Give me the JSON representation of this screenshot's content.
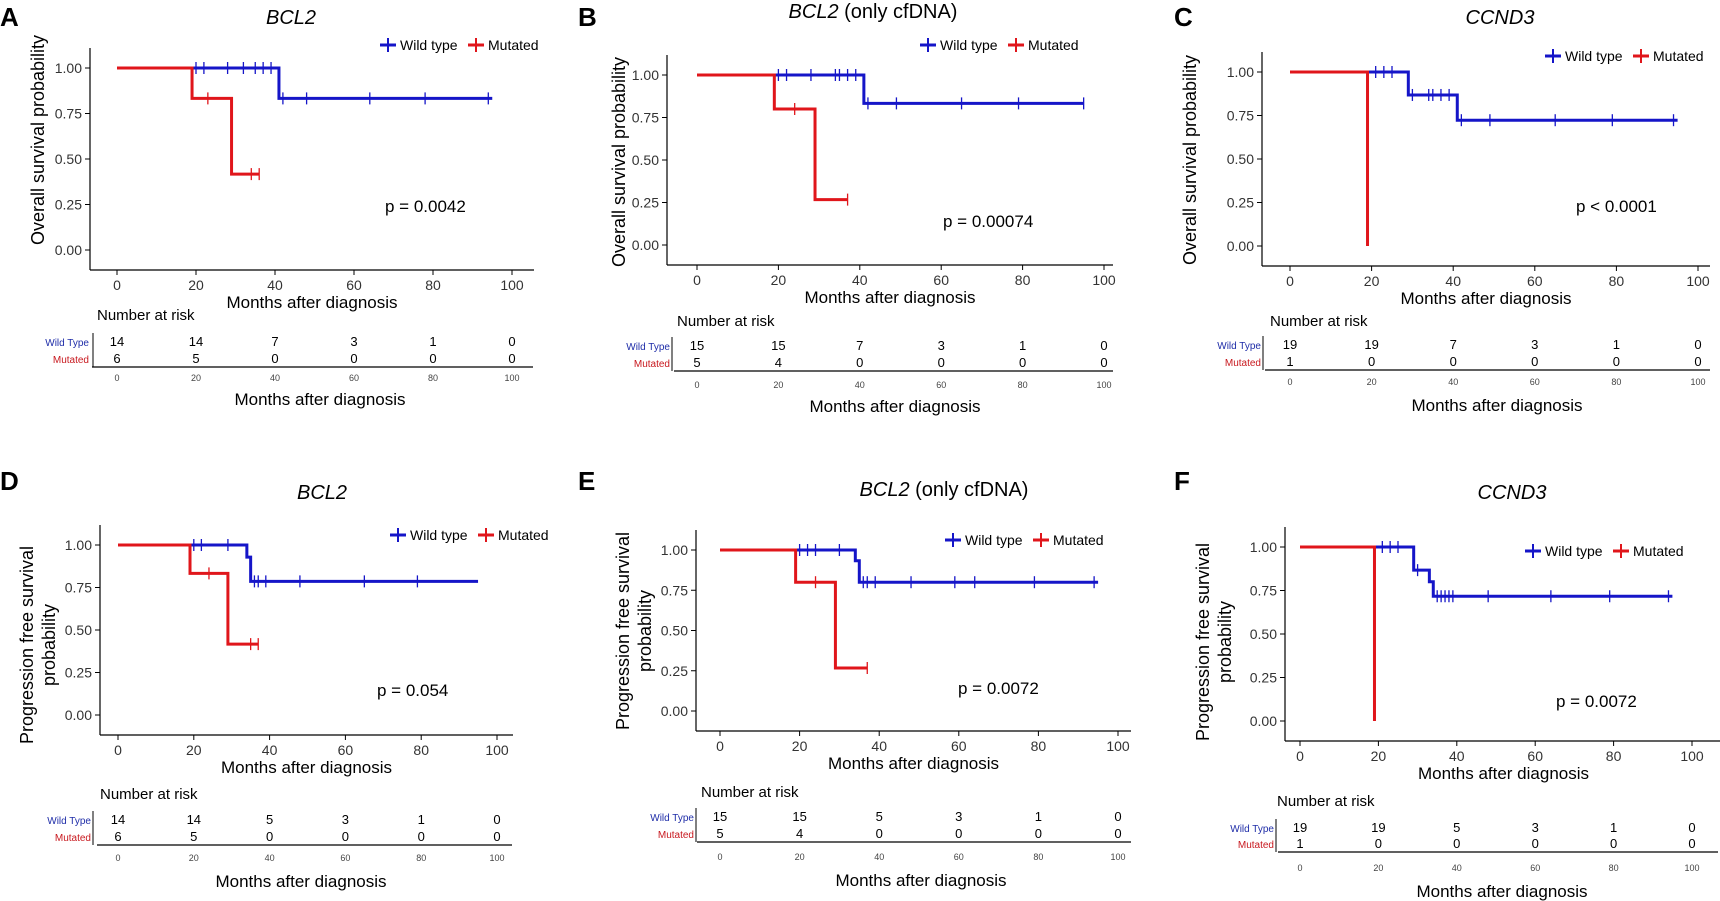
{
  "chart_data": [
    {
      "type": "line",
      "chart_kind": "kaplan-meier",
      "panel_label": "A",
      "title": "BCL2",
      "title_suffix": "",
      "ylabel_lines": [
        "Overall survival probability"
      ],
      "xlabel": "Months after diagnosis",
      "xlim": [
        0,
        100
      ],
      "ylim": [
        0,
        1
      ],
      "x_ticks": [
        0,
        20,
        40,
        60,
        80,
        100
      ],
      "y_ticks": [
        "0.00",
        "0.25",
        "0.50",
        "0.75",
        "1.00"
      ],
      "legend": [
        "Wild type",
        "Mutated"
      ],
      "p_value": "p = 0.0042",
      "series": [
        {
          "name": "Wild type",
          "color": "#1515c8",
          "steps": [
            [
              0,
              1.0
            ],
            [
              41,
              0.833
            ],
            [
              95,
              0.833
            ]
          ],
          "censor": [
            [
              20,
              1.0
            ],
            [
              22,
              1.0
            ],
            [
              28,
              1.0
            ],
            [
              32,
              1.0
            ],
            [
              35,
              1.0
            ],
            [
              37,
              1.0
            ],
            [
              39,
              1.0
            ],
            [
              42,
              0.833
            ],
            [
              48,
              0.833
            ],
            [
              64,
              0.833
            ],
            [
              78,
              0.833
            ],
            [
              94,
              0.833
            ]
          ]
        },
        {
          "name": "Mutated",
          "color": "#e0161b",
          "steps": [
            [
              0,
              1.0
            ],
            [
              19,
              0.833
            ],
            [
              29,
              0.417
            ],
            [
              36,
              0.417
            ]
          ],
          "censor": [
            [
              23,
              0.833
            ],
            [
              34,
              0.417
            ],
            [
              36,
              0.417
            ]
          ]
        }
      ],
      "risk_table": {
        "title": "Number at risk",
        "row_labels": [
          "Wild Type",
          "Mutated"
        ],
        "x_ticks": [
          0,
          20,
          40,
          60,
          80,
          100
        ],
        "rows": [
          [
            "14",
            "14",
            "7",
            "3",
            "1",
            "0"
          ],
          [
            "6",
            "5",
            "0",
            "0",
            "0",
            "0"
          ]
        ],
        "xlabel": "Months after diagnosis"
      }
    },
    {
      "type": "line",
      "chart_kind": "kaplan-meier",
      "panel_label": "B",
      "title": "BCL2",
      "title_suffix": " (only cfDNA)",
      "ylabel_lines": [
        "Overall survival probability"
      ],
      "xlabel": "Months after diagnosis",
      "xlim": [
        0,
        100
      ],
      "ylim": [
        0,
        1
      ],
      "x_ticks": [
        0,
        20,
        40,
        60,
        80,
        100
      ],
      "y_ticks": [
        "0.00",
        "0.25",
        "0.50",
        "0.75",
        "1.00"
      ],
      "legend": [
        "Wild type",
        "Mutated"
      ],
      "p_value": "p = 0.00074",
      "series": [
        {
          "name": "Wild type",
          "color": "#1515c8",
          "steps": [
            [
              0,
              1.0
            ],
            [
              41,
              0.833
            ],
            [
              95,
              0.833
            ]
          ],
          "censor": [
            [
              20,
              1.0
            ],
            [
              22,
              1.0
            ],
            [
              28,
              1.0
            ],
            [
              34,
              1.0
            ],
            [
              35,
              1.0
            ],
            [
              37,
              1.0
            ],
            [
              39,
              1.0
            ],
            [
              42,
              0.833
            ],
            [
              49,
              0.833
            ],
            [
              65,
              0.833
            ],
            [
              79,
              0.833
            ],
            [
              95,
              0.833
            ]
          ]
        },
        {
          "name": "Mutated",
          "color": "#e0161b",
          "steps": [
            [
              0,
              1.0
            ],
            [
              19,
              0.8
            ],
            [
              29,
              0.267
            ],
            [
              37,
              0.267
            ]
          ],
          "censor": [
            [
              24,
              0.8
            ],
            [
              37,
              0.267
            ]
          ]
        }
      ],
      "risk_table": {
        "title": "Number at risk",
        "row_labels": [
          "Wild Type",
          "Mutated"
        ],
        "x_ticks": [
          0,
          20,
          40,
          60,
          80,
          100
        ],
        "rows": [
          [
            "15",
            "15",
            "7",
            "3",
            "1",
            "0"
          ],
          [
            "5",
            "4",
            "0",
            "0",
            "0",
            "0"
          ]
        ],
        "xlabel": "Months after diagnosis"
      }
    },
    {
      "type": "line",
      "chart_kind": "kaplan-meier",
      "panel_label": "C",
      "title": "CCND3",
      "title_suffix": "",
      "ylabel_lines": [
        "Overall survival probability"
      ],
      "xlabel": "Months after diagnosis",
      "xlim": [
        0,
        100
      ],
      "ylim": [
        0,
        1
      ],
      "x_ticks": [
        0,
        20,
        40,
        60,
        80,
        100
      ],
      "y_ticks": [
        "0.00",
        "0.25",
        "0.50",
        "0.75",
        "1.00"
      ],
      "legend": [
        "Wild type",
        "Mutated"
      ],
      "p_value": "p < 0.0001",
      "series": [
        {
          "name": "Wild type",
          "color": "#1515c8",
          "steps": [
            [
              0,
              1.0
            ],
            [
              29,
              0.868
            ],
            [
              41,
              0.723
            ],
            [
              95,
              0.723
            ]
          ],
          "censor": [
            [
              21,
              1.0
            ],
            [
              23,
              1.0
            ],
            [
              25,
              1.0
            ],
            [
              30,
              0.868
            ],
            [
              34,
              0.868
            ],
            [
              35,
              0.868
            ],
            [
              37,
              0.868
            ],
            [
              39,
              0.868
            ],
            [
              42,
              0.723
            ],
            [
              49,
              0.723
            ],
            [
              65,
              0.723
            ],
            [
              79,
              0.723
            ],
            [
              94,
              0.723
            ]
          ]
        },
        {
          "name": "Mutated",
          "color": "#e0161b",
          "steps": [
            [
              0,
              1.0
            ],
            [
              19,
              0.0
            ]
          ],
          "censor": []
        }
      ],
      "risk_table": {
        "title": "Number at risk",
        "row_labels": [
          "Wild Type",
          "Mutated"
        ],
        "x_ticks": [
          0,
          20,
          40,
          60,
          80,
          100
        ],
        "rows": [
          [
            "19",
            "19",
            "7",
            "3",
            "1",
            "0"
          ],
          [
            "1",
            "0",
            "0",
            "0",
            "0",
            "0"
          ]
        ],
        "xlabel": "Months after diagnosis"
      }
    },
    {
      "type": "line",
      "chart_kind": "kaplan-meier",
      "panel_label": "D",
      "title": "BCL2",
      "title_suffix": "",
      "ylabel_lines": [
        "Progression free survival",
        "probability"
      ],
      "xlabel": "Months after diagnosis",
      "xlim": [
        0,
        100
      ],
      "ylim": [
        0,
        1
      ],
      "x_ticks": [
        0,
        20,
        40,
        60,
        80,
        100
      ],
      "y_ticks": [
        "0.00",
        "0.25",
        "0.50",
        "0.75",
        "1.00"
      ],
      "legend": [
        "Wild type",
        "Mutated"
      ],
      "p_value": "p = 0.054",
      "series": [
        {
          "name": "Wild type",
          "color": "#1515c8",
          "steps": [
            [
              0,
              1.0
            ],
            [
              34,
              0.929
            ],
            [
              35,
              0.786
            ],
            [
              95,
              0.786
            ]
          ],
          "censor": [
            [
              20,
              1.0
            ],
            [
              22,
              1.0
            ],
            [
              29,
              1.0
            ],
            [
              36,
              0.786
            ],
            [
              37,
              0.786
            ],
            [
              39,
              0.786
            ],
            [
              48,
              0.786
            ],
            [
              65,
              0.786
            ],
            [
              79,
              0.786
            ]
          ]
        },
        {
          "name": "Mutated",
          "color": "#e0161b",
          "steps": [
            [
              0,
              1.0
            ],
            [
              19,
              0.833
            ],
            [
              29,
              0.417
            ],
            [
              37,
              0.417
            ]
          ],
          "censor": [
            [
              24,
              0.833
            ],
            [
              35,
              0.417
            ],
            [
              37,
              0.417
            ]
          ]
        }
      ],
      "risk_table": {
        "title": "Number at risk",
        "row_labels": [
          "Wild Type",
          "Mutated"
        ],
        "x_ticks": [
          0,
          20,
          40,
          60,
          80,
          100
        ],
        "rows": [
          [
            "14",
            "14",
            "5",
            "3",
            "1",
            "0"
          ],
          [
            "6",
            "5",
            "0",
            "0",
            "0",
            "0"
          ]
        ],
        "xlabel": "Months after diagnosis"
      }
    },
    {
      "type": "line",
      "chart_kind": "kaplan-meier",
      "panel_label": "E",
      "title": "BCL2",
      "title_suffix": " (only cfDNA)",
      "ylabel_lines": [
        "Progression free survival",
        "probability"
      ],
      "xlabel": "Months after diagnosis",
      "xlim": [
        0,
        100
      ],
      "ylim": [
        0,
        1
      ],
      "x_ticks": [
        0,
        20,
        40,
        60,
        80,
        100
      ],
      "y_ticks": [
        "0.00",
        "0.25",
        "0.50",
        "0.75",
        "1.00"
      ],
      "legend": [
        "Wild type",
        "Mutated"
      ],
      "p_value": "p = 0.0072",
      "series": [
        {
          "name": "Wild type",
          "color": "#1515c8",
          "steps": [
            [
              0,
              1.0
            ],
            [
              34,
              0.933
            ],
            [
              35,
              0.8
            ],
            [
              95,
              0.8
            ]
          ],
          "censor": [
            [
              20,
              1.0
            ],
            [
              22,
              1.0
            ],
            [
              24,
              1.0
            ],
            [
              30,
              1.0
            ],
            [
              36,
              0.8
            ],
            [
              37,
              0.8
            ],
            [
              39,
              0.8
            ],
            [
              48,
              0.8
            ],
            [
              59,
              0.8
            ],
            [
              64,
              0.8
            ],
            [
              79,
              0.8
            ],
            [
              94,
              0.8
            ]
          ]
        },
        {
          "name": "Mutated",
          "color": "#e0161b",
          "steps": [
            [
              0,
              1.0
            ],
            [
              19,
              0.8
            ],
            [
              29,
              0.267
            ],
            [
              37,
              0.267
            ]
          ],
          "censor": [
            [
              24,
              0.8
            ],
            [
              37,
              0.267
            ]
          ]
        }
      ],
      "risk_table": {
        "title": "Number at risk",
        "row_labels": [
          "Wild Type",
          "Mutated"
        ],
        "x_ticks": [
          0,
          20,
          40,
          60,
          80,
          100
        ],
        "rows": [
          [
            "15",
            "15",
            "5",
            "3",
            "1",
            "0"
          ],
          [
            "5",
            "4",
            "0",
            "0",
            "0",
            "0"
          ]
        ],
        "xlabel": "Months after diagnosis"
      }
    },
    {
      "type": "line",
      "chart_kind": "kaplan-meier",
      "panel_label": "F",
      "title": "CCND3",
      "title_suffix": "",
      "ylabel_lines": [
        "Progression free survival",
        "probability"
      ],
      "xlabel": "Months after diagnosis",
      "xlim": [
        0,
        100
      ],
      "ylim": [
        0,
        1
      ],
      "x_ticks": [
        0,
        20,
        40,
        60,
        80,
        100
      ],
      "y_ticks": [
        "0.00",
        "0.25",
        "0.50",
        "0.75",
        "1.00"
      ],
      "legend": [
        "Wild type",
        "Mutated"
      ],
      "p_value": "p = 0.0072",
      "series": [
        {
          "name": "Wild type",
          "color": "#1515c8",
          "steps": [
            [
              0,
              1.0
            ],
            [
              29,
              0.867
            ],
            [
              33,
              0.8
            ],
            [
              34,
              0.717
            ],
            [
              95,
              0.717
            ]
          ],
          "censor": [
            [
              21,
              1.0
            ],
            [
              23,
              1.0
            ],
            [
              25,
              1.0
            ],
            [
              30,
              0.867
            ],
            [
              35,
              0.717
            ],
            [
              36,
              0.717
            ],
            [
              37,
              0.717
            ],
            [
              38,
              0.717
            ],
            [
              39,
              0.717
            ],
            [
              48,
              0.717
            ],
            [
              64,
              0.717
            ],
            [
              79,
              0.717
            ],
            [
              94,
              0.717
            ]
          ]
        },
        {
          "name": "Mutated",
          "color": "#e0161b",
          "steps": [
            [
              0,
              1.0
            ],
            [
              19,
              0.0
            ]
          ],
          "censor": []
        }
      ],
      "risk_table": {
        "title": "Number at risk",
        "row_labels": [
          "Wild Type",
          "Mutated"
        ],
        "x_ticks": [
          0,
          20,
          40,
          60,
          80,
          100
        ],
        "rows": [
          [
            "19",
            "19",
            "5",
            "3",
            "1",
            "0"
          ],
          [
            "1",
            "0",
            "0",
            "0",
            "0",
            "0"
          ]
        ],
        "xlabel": "Months after diagnosis"
      }
    }
  ]
}
